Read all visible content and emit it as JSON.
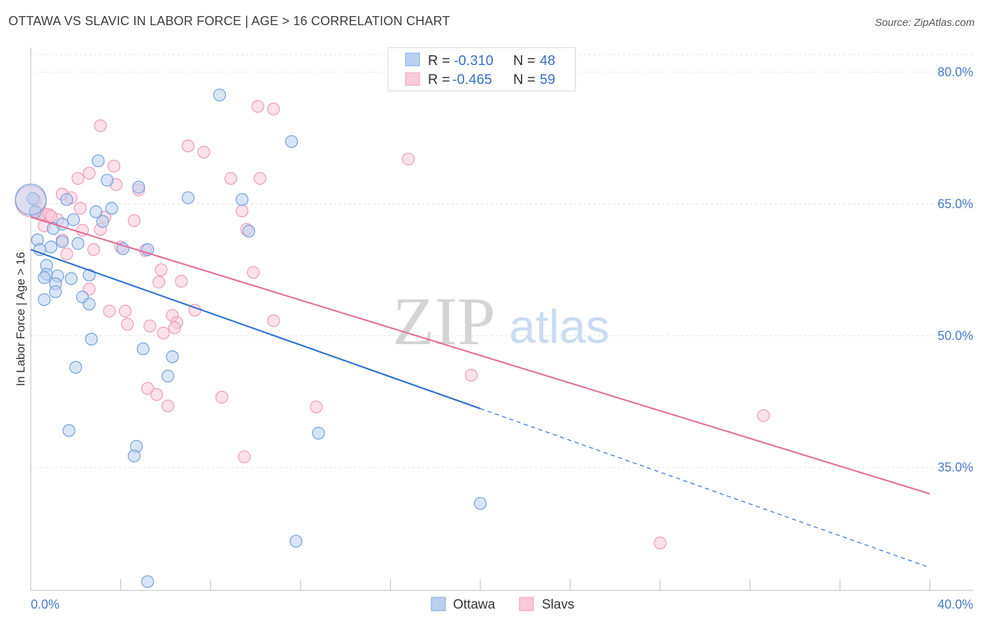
{
  "header": {
    "title": "OTTAWA VS SLAVIC IN LABOR FORCE | AGE > 16 CORRELATION CHART",
    "source": "Source: ZipAtlas.com"
  },
  "watermark": {
    "zip": "ZIP",
    "atlas": "atlas"
  },
  "legend": {
    "rows": [
      {
        "r_label": "R =",
        "r_value": "-0.310",
        "n_label": "N =",
        "n_value": "48"
      },
      {
        "r_label": "R =",
        "r_value": "-0.465",
        "n_label": "N =",
        "n_value": "59"
      }
    ]
  },
  "bottom_legend": {
    "ottawa": "Ottawa",
    "slavs": "Slavs"
  },
  "chart_data": {
    "type": "scatter",
    "title": "OTTAWA VS SLAVIC IN LABOR FORCE | AGE > 16 CORRELATION CHART",
    "ylabel": "In Labor Force | Age > 16",
    "xlabel": "",
    "xlim": [
      0,
      40
    ],
    "ylim": [
      21,
      82
    ],
    "x_tick_labels": [
      "0.0%",
      "40.0%"
    ],
    "y_ticks": [
      35,
      50,
      65,
      80
    ],
    "y_tick_labels": [
      "35.0%",
      "50.0%",
      "65.0%",
      "80.0%"
    ],
    "grid": true,
    "legend_position": "top-center",
    "colors": {
      "ottawa": "#7aa7e0",
      "slavs": "#f0a0bd",
      "ottawa_line": "#2f6fd0",
      "slavs_line": "#e07098"
    },
    "series": [
      {
        "name": "Ottawa",
        "r": -0.31,
        "n": 48,
        "trend": {
          "x0": 0,
          "y0": 59.8,
          "x1": 20,
          "y1": 41.7,
          "dash_to_x": 40,
          "dash_to_y": 23.6
        },
        "points": [
          [
            8.4,
            77.4
          ],
          [
            11.6,
            72.1
          ],
          [
            3.0,
            69.9
          ],
          [
            3.4,
            67.7
          ],
          [
            4.8,
            66.9
          ],
          [
            7.0,
            65.7
          ],
          [
            9.4,
            65.5
          ],
          [
            1.6,
            65.5
          ],
          [
            0.1,
            65.6
          ],
          [
            3.6,
            64.5
          ],
          [
            2.9,
            64.1
          ],
          [
            0.2,
            64.1
          ],
          [
            1.9,
            63.2
          ],
          [
            1.4,
            62.7
          ],
          [
            3.2,
            63.0
          ],
          [
            1.0,
            62.2
          ],
          [
            9.7,
            61.9
          ],
          [
            0.3,
            60.9
          ],
          [
            1.4,
            60.7
          ],
          [
            2.1,
            60.5
          ],
          [
            0.9,
            60.1
          ],
          [
            0.4,
            59.8
          ],
          [
            4.1,
            59.9
          ],
          [
            5.2,
            59.8
          ],
          [
            0.7,
            58.0
          ],
          [
            0.7,
            57.0
          ],
          [
            1.2,
            56.8
          ],
          [
            2.6,
            56.9
          ],
          [
            0.6,
            56.6
          ],
          [
            1.8,
            56.5
          ],
          [
            1.1,
            55.9
          ],
          [
            1.1,
            55.0
          ],
          [
            2.3,
            54.4
          ],
          [
            0.6,
            54.1
          ],
          [
            2.6,
            53.6
          ],
          [
            2.7,
            49.6
          ],
          [
            5.0,
            48.5
          ],
          [
            6.3,
            47.6
          ],
          [
            6.1,
            45.4
          ],
          [
            2.0,
            46.4
          ],
          [
            1.7,
            39.2
          ],
          [
            12.8,
            38.9
          ],
          [
            4.7,
            37.4
          ],
          [
            4.6,
            36.3
          ],
          [
            20.0,
            30.9
          ],
          [
            11.8,
            26.6
          ],
          [
            5.2,
            22.0
          ],
          [
            0.0,
            65.5
          ]
        ]
      },
      {
        "name": "Slavs",
        "r": -0.465,
        "n": 59,
        "trend": {
          "x0": 0,
          "y0": 63.5,
          "x1": 40,
          "y1": 32.0
        },
        "points": [
          [
            10.1,
            76.1
          ],
          [
            10.8,
            75.8
          ],
          [
            3.1,
            73.9
          ],
          [
            7.0,
            71.6
          ],
          [
            7.7,
            70.9
          ],
          [
            16.8,
            70.1
          ],
          [
            3.7,
            69.3
          ],
          [
            2.6,
            68.5
          ],
          [
            2.1,
            67.9
          ],
          [
            8.9,
            67.9
          ],
          [
            10.2,
            67.9
          ],
          [
            3.8,
            67.2
          ],
          [
            4.8,
            66.6
          ],
          [
            1.4,
            66.1
          ],
          [
            1.8,
            65.7
          ],
          [
            0.2,
            65.4
          ],
          [
            2.2,
            64.5
          ],
          [
            0.3,
            64.0
          ],
          [
            9.4,
            64.2
          ],
          [
            0.6,
            63.9
          ],
          [
            0.8,
            63.8
          ],
          [
            1.2,
            63.2
          ],
          [
            0.9,
            63.6
          ],
          [
            3.3,
            63.5
          ],
          [
            4.6,
            63.1
          ],
          [
            0.6,
            62.5
          ],
          [
            3.1,
            62.1
          ],
          [
            9.6,
            62.1
          ],
          [
            2.3,
            62.0
          ],
          [
            1.4,
            60.9
          ],
          [
            4.0,
            60.1
          ],
          [
            5.1,
            59.7
          ],
          [
            2.8,
            59.8
          ],
          [
            1.6,
            59.3
          ],
          [
            5.8,
            57.5
          ],
          [
            9.9,
            57.2
          ],
          [
            5.7,
            56.1
          ],
          [
            6.7,
            56.2
          ],
          [
            2.6,
            55.3
          ],
          [
            3.5,
            52.8
          ],
          [
            4.2,
            52.8
          ],
          [
            7.3,
            52.9
          ],
          [
            6.3,
            52.3
          ],
          [
            10.8,
            51.7
          ],
          [
            4.3,
            51.3
          ],
          [
            5.3,
            51.1
          ],
          [
            6.5,
            51.5
          ],
          [
            6.4,
            50.9
          ],
          [
            5.9,
            50.3
          ],
          [
            19.6,
            45.5
          ],
          [
            5.2,
            44.0
          ],
          [
            5.6,
            43.3
          ],
          [
            8.5,
            43.0
          ],
          [
            12.7,
            41.9
          ],
          [
            6.1,
            42.0
          ],
          [
            32.6,
            40.9
          ],
          [
            9.5,
            36.2
          ],
          [
            28.0,
            26.4
          ],
          [
            0.0,
            65.3
          ]
        ]
      }
    ]
  }
}
